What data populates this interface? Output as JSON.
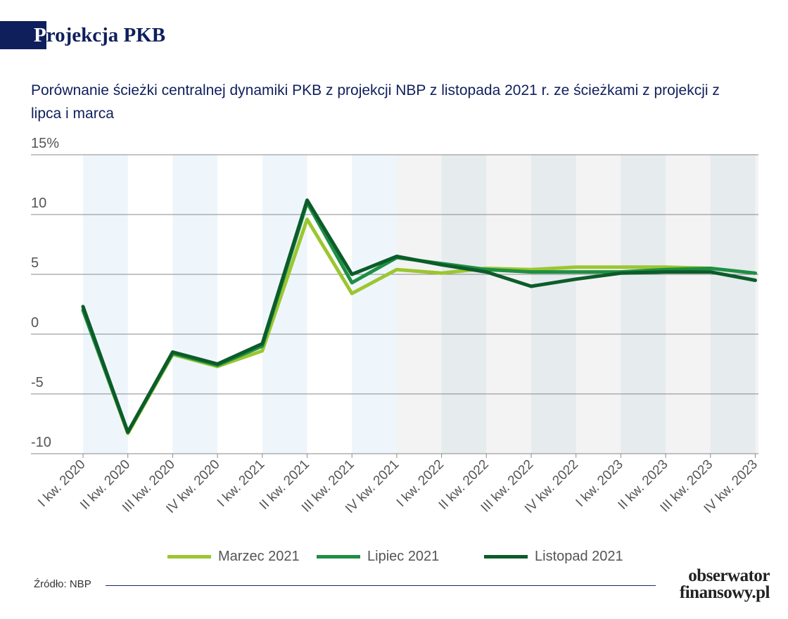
{
  "header": {
    "title_first_letter": "P",
    "title_rest": "rojekcja PKB"
  },
  "subtitle": "Porównanie ścieżki centralnej dynamiki PKB z projekcji NBP z listopada 2021 r. ze ścieżkami z projekcji z lipca i marca",
  "chart_data": {
    "type": "line",
    "x": [
      "I kw. 2020",
      "II kw. 2020",
      "III kw. 2020",
      "IV kw. 2020",
      "I kw. 2021",
      "II kw. 2021",
      "III kw. 2021",
      "IV kw. 2021",
      "I kw. 2022",
      "II kw. 2022",
      "III kw. 2022",
      "IV kw. 2022",
      "I kw. 2023",
      "II kw. 2023",
      "III kw. 2023",
      "IV kw. 2023"
    ],
    "y_ticks": [
      {
        "value": 15,
        "label": "15%"
      },
      {
        "value": 10,
        "label": "10"
      },
      {
        "value": 5,
        "label": "5"
      },
      {
        "value": 0,
        "label": "0"
      },
      {
        "value": -5,
        "label": "-5"
      },
      {
        "value": -10,
        "label": "-10"
      }
    ],
    "ylim": [
      -10,
      15
    ],
    "grid": true,
    "projection_shading_start": "IV kw. 2021",
    "legend_position": "bottom",
    "series": [
      {
        "name": "Marzec 2021",
        "color": "#9cc630",
        "values": [
          2.0,
          -8.3,
          -1.7,
          -2.7,
          -1.4,
          9.6,
          3.4,
          5.4,
          5.1,
          5.5,
          5.4,
          5.6,
          5.6,
          5.6,
          5.5,
          null
        ]
      },
      {
        "name": "Lipiec 2021",
        "color": "#1e8f43",
        "values": [
          2.0,
          -8.2,
          -1.6,
          -2.6,
          -1.0,
          11.0,
          4.3,
          6.4,
          5.9,
          5.4,
          5.2,
          5.2,
          5.2,
          5.4,
          5.5,
          5.1
        ]
      },
      {
        "name": "Listopad 2021",
        "color": "#0c5c2a",
        "values": [
          2.3,
          -8.2,
          -1.5,
          -2.5,
          -0.8,
          11.2,
          5.0,
          6.5,
          5.8,
          5.2,
          4.0,
          4.6,
          5.1,
          5.2,
          5.2,
          4.5
        ]
      }
    ]
  },
  "footer": {
    "source": "Źródło: NBP",
    "logo_line1": "obserwator",
    "logo_line2": "finansowy.pl"
  }
}
